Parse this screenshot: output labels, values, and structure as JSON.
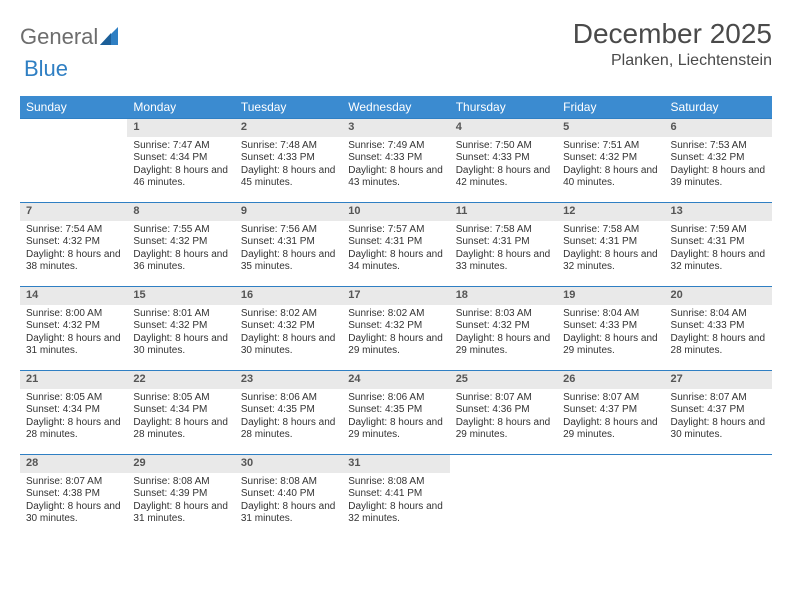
{
  "brand": {
    "word1": "General",
    "word2": "Blue"
  },
  "title": "December 2025",
  "location": "Planken, Liechtenstein",
  "colors": {
    "header_bg": "#3b8bd0",
    "header_text": "#ffffff",
    "daynum_bg": "#e9e9e9",
    "rule": "#2f7fc3",
    "body_text": "#333333",
    "title_text": "#4a4a4a",
    "logo_gray": "#6d6d6d",
    "logo_blue": "#2f7fc3"
  },
  "daysOfWeek": [
    "Sunday",
    "Monday",
    "Tuesday",
    "Wednesday",
    "Thursday",
    "Friday",
    "Saturday"
  ],
  "weeks": [
    [
      {
        "n": "",
        "sr": "",
        "ss": "",
        "dl": ""
      },
      {
        "n": "1",
        "sr": "Sunrise: 7:47 AM",
        "ss": "Sunset: 4:34 PM",
        "dl": "Daylight: 8 hours and 46 minutes."
      },
      {
        "n": "2",
        "sr": "Sunrise: 7:48 AM",
        "ss": "Sunset: 4:33 PM",
        "dl": "Daylight: 8 hours and 45 minutes."
      },
      {
        "n": "3",
        "sr": "Sunrise: 7:49 AM",
        "ss": "Sunset: 4:33 PM",
        "dl": "Daylight: 8 hours and 43 minutes."
      },
      {
        "n": "4",
        "sr": "Sunrise: 7:50 AM",
        "ss": "Sunset: 4:33 PM",
        "dl": "Daylight: 8 hours and 42 minutes."
      },
      {
        "n": "5",
        "sr": "Sunrise: 7:51 AM",
        "ss": "Sunset: 4:32 PM",
        "dl": "Daylight: 8 hours and 40 minutes."
      },
      {
        "n": "6",
        "sr": "Sunrise: 7:53 AM",
        "ss": "Sunset: 4:32 PM",
        "dl": "Daylight: 8 hours and 39 minutes."
      }
    ],
    [
      {
        "n": "7",
        "sr": "Sunrise: 7:54 AM",
        "ss": "Sunset: 4:32 PM",
        "dl": "Daylight: 8 hours and 38 minutes."
      },
      {
        "n": "8",
        "sr": "Sunrise: 7:55 AM",
        "ss": "Sunset: 4:32 PM",
        "dl": "Daylight: 8 hours and 36 minutes."
      },
      {
        "n": "9",
        "sr": "Sunrise: 7:56 AM",
        "ss": "Sunset: 4:31 PM",
        "dl": "Daylight: 8 hours and 35 minutes."
      },
      {
        "n": "10",
        "sr": "Sunrise: 7:57 AM",
        "ss": "Sunset: 4:31 PM",
        "dl": "Daylight: 8 hours and 34 minutes."
      },
      {
        "n": "11",
        "sr": "Sunrise: 7:58 AM",
        "ss": "Sunset: 4:31 PM",
        "dl": "Daylight: 8 hours and 33 minutes."
      },
      {
        "n": "12",
        "sr": "Sunrise: 7:58 AM",
        "ss": "Sunset: 4:31 PM",
        "dl": "Daylight: 8 hours and 32 minutes."
      },
      {
        "n": "13",
        "sr": "Sunrise: 7:59 AM",
        "ss": "Sunset: 4:31 PM",
        "dl": "Daylight: 8 hours and 32 minutes."
      }
    ],
    [
      {
        "n": "14",
        "sr": "Sunrise: 8:00 AM",
        "ss": "Sunset: 4:32 PM",
        "dl": "Daylight: 8 hours and 31 minutes."
      },
      {
        "n": "15",
        "sr": "Sunrise: 8:01 AM",
        "ss": "Sunset: 4:32 PM",
        "dl": "Daylight: 8 hours and 30 minutes."
      },
      {
        "n": "16",
        "sr": "Sunrise: 8:02 AM",
        "ss": "Sunset: 4:32 PM",
        "dl": "Daylight: 8 hours and 30 minutes."
      },
      {
        "n": "17",
        "sr": "Sunrise: 8:02 AM",
        "ss": "Sunset: 4:32 PM",
        "dl": "Daylight: 8 hours and 29 minutes."
      },
      {
        "n": "18",
        "sr": "Sunrise: 8:03 AM",
        "ss": "Sunset: 4:32 PM",
        "dl": "Daylight: 8 hours and 29 minutes."
      },
      {
        "n": "19",
        "sr": "Sunrise: 8:04 AM",
        "ss": "Sunset: 4:33 PM",
        "dl": "Daylight: 8 hours and 29 minutes."
      },
      {
        "n": "20",
        "sr": "Sunrise: 8:04 AM",
        "ss": "Sunset: 4:33 PM",
        "dl": "Daylight: 8 hours and 28 minutes."
      }
    ],
    [
      {
        "n": "21",
        "sr": "Sunrise: 8:05 AM",
        "ss": "Sunset: 4:34 PM",
        "dl": "Daylight: 8 hours and 28 minutes."
      },
      {
        "n": "22",
        "sr": "Sunrise: 8:05 AM",
        "ss": "Sunset: 4:34 PM",
        "dl": "Daylight: 8 hours and 28 minutes."
      },
      {
        "n": "23",
        "sr": "Sunrise: 8:06 AM",
        "ss": "Sunset: 4:35 PM",
        "dl": "Daylight: 8 hours and 28 minutes."
      },
      {
        "n": "24",
        "sr": "Sunrise: 8:06 AM",
        "ss": "Sunset: 4:35 PM",
        "dl": "Daylight: 8 hours and 29 minutes."
      },
      {
        "n": "25",
        "sr": "Sunrise: 8:07 AM",
        "ss": "Sunset: 4:36 PM",
        "dl": "Daylight: 8 hours and 29 minutes."
      },
      {
        "n": "26",
        "sr": "Sunrise: 8:07 AM",
        "ss": "Sunset: 4:37 PM",
        "dl": "Daylight: 8 hours and 29 minutes."
      },
      {
        "n": "27",
        "sr": "Sunrise: 8:07 AM",
        "ss": "Sunset: 4:37 PM",
        "dl": "Daylight: 8 hours and 30 minutes."
      }
    ],
    [
      {
        "n": "28",
        "sr": "Sunrise: 8:07 AM",
        "ss": "Sunset: 4:38 PM",
        "dl": "Daylight: 8 hours and 30 minutes."
      },
      {
        "n": "29",
        "sr": "Sunrise: 8:08 AM",
        "ss": "Sunset: 4:39 PM",
        "dl": "Daylight: 8 hours and 31 minutes."
      },
      {
        "n": "30",
        "sr": "Sunrise: 8:08 AM",
        "ss": "Sunset: 4:40 PM",
        "dl": "Daylight: 8 hours and 31 minutes."
      },
      {
        "n": "31",
        "sr": "Sunrise: 8:08 AM",
        "ss": "Sunset: 4:41 PM",
        "dl": "Daylight: 8 hours and 32 minutes."
      },
      {
        "n": "",
        "sr": "",
        "ss": "",
        "dl": ""
      },
      {
        "n": "",
        "sr": "",
        "ss": "",
        "dl": ""
      },
      {
        "n": "",
        "sr": "",
        "ss": "",
        "dl": ""
      }
    ]
  ]
}
